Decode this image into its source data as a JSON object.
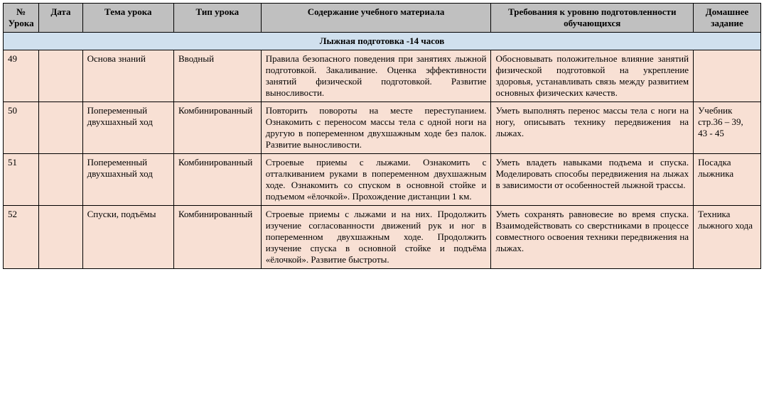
{
  "headers": {
    "num": "№ Урока",
    "date": "Дата",
    "topic": "Тема урока",
    "type": "Тип урока",
    "content": "Содержание учебного материала",
    "requirements": "Требования к уровню подготовленности обучающихся",
    "homework": "Домашнее задание"
  },
  "section_title": "Лыжная подготовка -14 часов",
  "colors": {
    "header_bg": "#c0c0c0",
    "section_bg": "#d0e0ee",
    "row_bg": "#f8e0d4",
    "border": "#000000",
    "text": "#000000"
  },
  "font": {
    "family": "Times New Roman",
    "size_pt": 10
  },
  "rows": [
    {
      "num": "49",
      "date": "",
      "topic": "Основа знаний",
      "type": "Вводный",
      "content": "Правила безопасного поведения при занятиях лыжной подготовкой. Закаливание. Оценка эффективности занятий физической подготовкой. Развитие выносливости.",
      "requirements": "Обосновывать положительное влияние занятий физической подготовкой на укрепление здоровья, устанавливать связь между развитием основных физических качеств.",
      "homework": ""
    },
    {
      "num": "50",
      "date": "",
      "topic": "Попеременный двухшахный ход",
      "type": "Комбинированный",
      "content": " Повторить повороты на месте переступанием. Ознакомить с переносом массы тела с одной ноги на другую в попеременном двухшажным ходе без палок. Развитие выносливости.",
      "requirements": "Уметь выполнять перенос массы тела с ноги на ногу, описывать технику передвижения на лыжах.",
      "homework": "Учебник стр.36 – 39,\n43 - 45"
    },
    {
      "num": "51",
      "date": "",
      "topic": "Попеременный двухшахный ход",
      "type": "Комбинированный",
      "content": "Строевые приемы с лыжами. Ознакомить с отталкиванием руками в попеременном двухшажным ходе. Ознакомить со спуском в основной стойке и подъемом «ёлочкой». Прохождение дистанции 1 км.",
      "requirements": "Уметь владеть навыками подъема и спуска. Моделировать способы передвижения на лыжах в зависимости от особенностей лыжной трассы.",
      "homework": " Посадка лыжника"
    },
    {
      "num": "52",
      "date": "",
      "topic": "Спуски, подъёмы",
      "type": "Комбинированный",
      "content": "Строевые приемы с лыжами и на них. Продолжить изучение согласованности движений рук и ног в попеременном двухшажным ходе. Продолжить изучение спуска в основной стойке и подъёма «ёлочкой». Развитие быстроты.",
      "requirements": "Уметь сохранять равновесие во время спуска. Взаимодействовать со сверстниками в процессе совместного освоения техники передвижения на лыжах.",
      "homework": "Техника лыжного хода"
    }
  ]
}
